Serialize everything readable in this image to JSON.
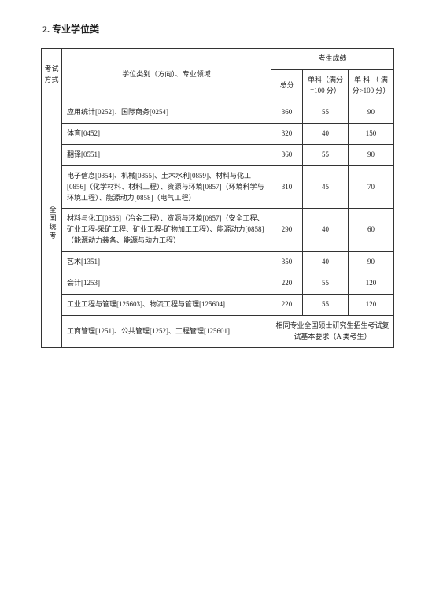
{
  "title": "2. 专业学位类",
  "headers": {
    "method": "考试方式",
    "field": "学位类别（方向）、专业领域",
    "scoreGroup": "考生成绩",
    "total": "总分",
    "sub1": "单科（满分=100 分）",
    "sub2": "单 科 （ 满分>100 分）"
  },
  "sideLabel": "全国统考",
  "rows": [
    {
      "field": "应用统计[0252]、国际商务[0254]",
      "total": "360",
      "s1": "55",
      "s2": "90"
    },
    {
      "field": "体育[0452]",
      "total": "320",
      "s1": "40",
      "s2": "150"
    },
    {
      "field": "翻译[0551]",
      "total": "360",
      "s1": "55",
      "s2": "90"
    },
    {
      "field": "电子信息[0854]、机械[0855]、土木水利[0859]、材料与化工[0856]（化学材料、材料工程）、资源与环境[0857]（环境科学与环境工程）、能源动力[0858]（电气工程）",
      "total": "310",
      "s1": "45",
      "s2": "70"
    },
    {
      "field": "材料与化工[0856]（冶金工程）、资源与环境[0857]（安全工程、矿业工程-采矿工程、矿业工程-矿物加工工程）、能源动力[0858]（能源动力装备、能源与动力工程）",
      "total": "290",
      "s1": "40",
      "s2": "60"
    },
    {
      "field": "艺术[1351]",
      "total": "350",
      "s1": "40",
      "s2": "90"
    },
    {
      "field": "会计[1253]",
      "total": "220",
      "s1": "55",
      "s2": "120"
    },
    {
      "field": "工业工程与管理[125603]、物流工程与管理[125604]",
      "total": "220",
      "s1": "55",
      "s2": "120"
    }
  ],
  "lastRow": {
    "field": "工商管理[1251]、公共管理[1252]、工程管理[125601]",
    "note": "相同专业全国硕士研究生招生考试复试基本要求（A 类考生）"
  }
}
